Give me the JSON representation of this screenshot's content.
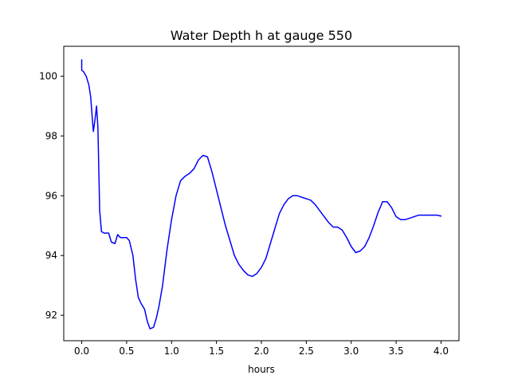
{
  "chart_data": {
    "type": "line",
    "title": "Water Depth h at gauge 550",
    "xlabel": "hours",
    "ylabel": "",
    "xlim": [
      -0.2,
      4.2
    ],
    "ylim": [
      91.15,
      101.0
    ],
    "xticks": [
      0.0,
      0.5,
      1.0,
      1.5,
      2.0,
      2.5,
      3.0,
      3.5,
      4.0
    ],
    "xtick_labels": [
      "0.0",
      "0.5",
      "1.0",
      "1.5",
      "2.0",
      "2.5",
      "3.0",
      "3.5",
      "4.0"
    ],
    "yticks": [
      92,
      94,
      96,
      98,
      100
    ],
    "ytick_labels": [
      "92",
      "94",
      "96",
      "98",
      "100"
    ],
    "grid": false,
    "series": [
      {
        "color": "#0000ff",
        "x": [
          0.0,
          0.0,
          0.0,
          0.02,
          0.05,
          0.08,
          0.1,
          0.12,
          0.13,
          0.15,
          0.165,
          0.18,
          0.2,
          0.22,
          0.25,
          0.3,
          0.33,
          0.37,
          0.4,
          0.43,
          0.46,
          0.5,
          0.53,
          0.57,
          0.6,
          0.63,
          0.66,
          0.7,
          0.73,
          0.76,
          0.8,
          0.83,
          0.86,
          0.9,
          0.95,
          1.0,
          1.05,
          1.1,
          1.15,
          1.2,
          1.25,
          1.3,
          1.35,
          1.4,
          1.45,
          1.5,
          1.55,
          1.6,
          1.65,
          1.7,
          1.75,
          1.8,
          1.85,
          1.9,
          1.95,
          2.0,
          2.05,
          2.1,
          2.15,
          2.2,
          2.25,
          2.3,
          2.35,
          2.4,
          2.45,
          2.5,
          2.55,
          2.6,
          2.65,
          2.7,
          2.75,
          2.8,
          2.85,
          2.9,
          2.95,
          3.0,
          3.05,
          3.1,
          3.15,
          3.2,
          3.25,
          3.3,
          3.35,
          3.4,
          3.45,
          3.5,
          3.55,
          3.6,
          3.65,
          3.7,
          3.75,
          3.8,
          3.85,
          3.9,
          3.95,
          4.0
        ],
        "y": [
          100.55,
          100.3,
          100.2,
          100.15,
          100.0,
          99.7,
          99.3,
          98.5,
          98.15,
          98.6,
          99.0,
          98.3,
          95.5,
          94.8,
          94.75,
          94.75,
          94.45,
          94.4,
          94.7,
          94.6,
          94.6,
          94.6,
          94.5,
          94.0,
          93.2,
          92.6,
          92.4,
          92.2,
          91.8,
          91.55,
          91.6,
          91.9,
          92.3,
          93.0,
          94.2,
          95.2,
          96.0,
          96.5,
          96.65,
          96.75,
          96.9,
          97.2,
          97.35,
          97.3,
          96.8,
          96.2,
          95.6,
          95.0,
          94.5,
          94.0,
          93.7,
          93.5,
          93.35,
          93.3,
          93.4,
          93.6,
          93.9,
          94.4,
          94.9,
          95.4,
          95.7,
          95.9,
          96.0,
          96.0,
          95.95,
          95.9,
          95.85,
          95.7,
          95.5,
          95.3,
          95.1,
          94.95,
          94.95,
          94.85,
          94.6,
          94.3,
          94.1,
          94.15,
          94.3,
          94.6,
          95.0,
          95.45,
          95.8,
          95.8,
          95.6,
          95.3,
          95.2,
          95.2,
          95.25,
          95.3,
          95.35,
          95.35,
          95.35,
          95.35,
          95.35,
          95.32
        ]
      }
    ]
  }
}
